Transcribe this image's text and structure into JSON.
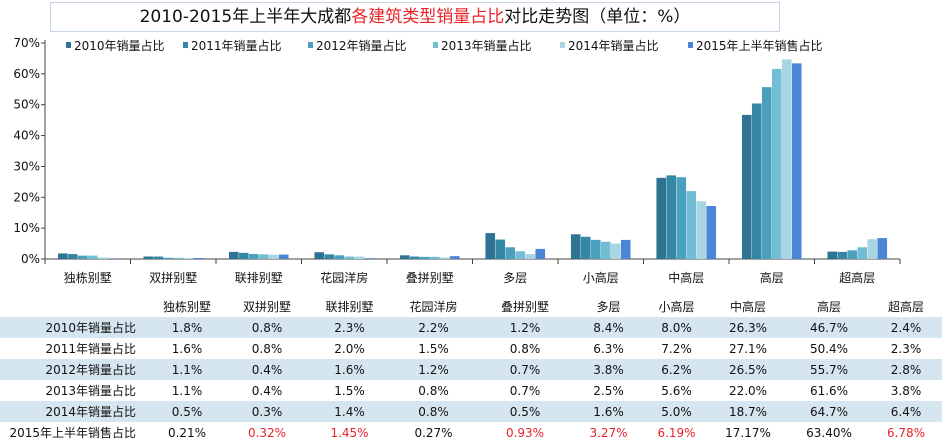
{
  "title": {
    "prefix": "2010-2015年上半年大成都",
    "highlight": "各建筑类型销量占比",
    "suffix": "对比走势图（单位：%）"
  },
  "colors": {
    "highlight": "#e8232a",
    "band": "#d6e6f0"
  },
  "chart_data": {
    "type": "bar",
    "categories": [
      "独栋别墅",
      "双拼别墅",
      "联排别墅",
      "花园洋房",
      "叠拼别墅",
      "多层",
      "小高层",
      "中高层",
      "高层",
      "超高层"
    ],
    "ylim": [
      0,
      70
    ],
    "yticks": [
      "0%",
      "10%",
      "20%",
      "30%",
      "40%",
      "50%",
      "60%",
      "70%"
    ],
    "legend_position": "top",
    "series": [
      {
        "name": "2010年销量占比",
        "color": "#2e7391",
        "values": [
          1.8,
          0.8,
          2.3,
          2.2,
          1.2,
          8.4,
          8.0,
          26.3,
          46.7,
          2.4
        ]
      },
      {
        "name": "2011年销量占比",
        "color": "#3488a6",
        "values": [
          1.6,
          0.8,
          2.0,
          1.5,
          0.8,
          6.3,
          7.2,
          27.1,
          50.4,
          2.3
        ]
      },
      {
        "name": "2012年销量占比",
        "color": "#4aa0bd",
        "values": [
          1.1,
          0.4,
          1.6,
          1.2,
          0.7,
          3.8,
          6.2,
          26.5,
          55.7,
          2.8
        ]
      },
      {
        "name": "2013年销量占比",
        "color": "#72bcd4",
        "values": [
          1.1,
          0.4,
          1.5,
          0.8,
          0.7,
          2.5,
          5.6,
          22.0,
          61.6,
          3.8
        ]
      },
      {
        "name": "2014年销量占比",
        "color": "#a9d5e3",
        "values": [
          0.5,
          0.3,
          1.4,
          0.8,
          0.5,
          1.6,
          5.0,
          18.7,
          64.7,
          6.4
        ]
      },
      {
        "name": "2015年上半年销售占比",
        "color": "#4b86d4",
        "values": [
          0.21,
          0.32,
          1.45,
          0.27,
          0.93,
          3.27,
          6.19,
          17.17,
          63.4,
          6.78
        ]
      }
    ]
  },
  "table": {
    "header": [
      "独栋别墅",
      "双拼别墅",
      "联排别墅",
      "花园洋房",
      "叠拼别墅",
      "多层",
      "小高层",
      "中高层",
      "高层",
      "超高层"
    ],
    "rows": [
      {
        "label": "2010年销量占比",
        "cells": [
          "1.8%",
          "0.8%",
          "2.3%",
          "2.2%",
          "1.2%",
          "8.4%",
          "8.0%",
          "26.3%",
          "46.7%",
          "2.4%"
        ],
        "red": []
      },
      {
        "label": "2011年销量占比",
        "cells": [
          "1.6%",
          "0.8%",
          "2.0%",
          "1.5%",
          "0.8%",
          "6.3%",
          "7.2%",
          "27.1%",
          "50.4%",
          "2.3%"
        ],
        "red": []
      },
      {
        "label": "2012年销量占比",
        "cells": [
          "1.1%",
          "0.4%",
          "1.6%",
          "1.2%",
          "0.7%",
          "3.8%",
          "6.2%",
          "26.5%",
          "55.7%",
          "2.8%"
        ],
        "red": []
      },
      {
        "label": "2013年销量占比",
        "cells": [
          "1.1%",
          "0.4%",
          "1.5%",
          "0.8%",
          "0.7%",
          "2.5%",
          "5.6%",
          "22.0%",
          "61.6%",
          "3.8%"
        ],
        "red": []
      },
      {
        "label": "2014年销量占比",
        "cells": [
          "0.5%",
          "0.3%",
          "1.4%",
          "0.8%",
          "0.5%",
          "1.6%",
          "5.0%",
          "18.7%",
          "64.7%",
          "6.4%"
        ],
        "red": []
      },
      {
        "label": "2015年上半年销售占比",
        "cells": [
          "0.21%",
          "0.32%",
          "1.45%",
          "0.27%",
          "0.93%",
          "3.27%",
          "6.19%",
          "17.17%",
          "63.40%",
          "6.78%"
        ],
        "red": [
          1,
          2,
          4,
          5,
          6,
          9
        ]
      }
    ]
  }
}
